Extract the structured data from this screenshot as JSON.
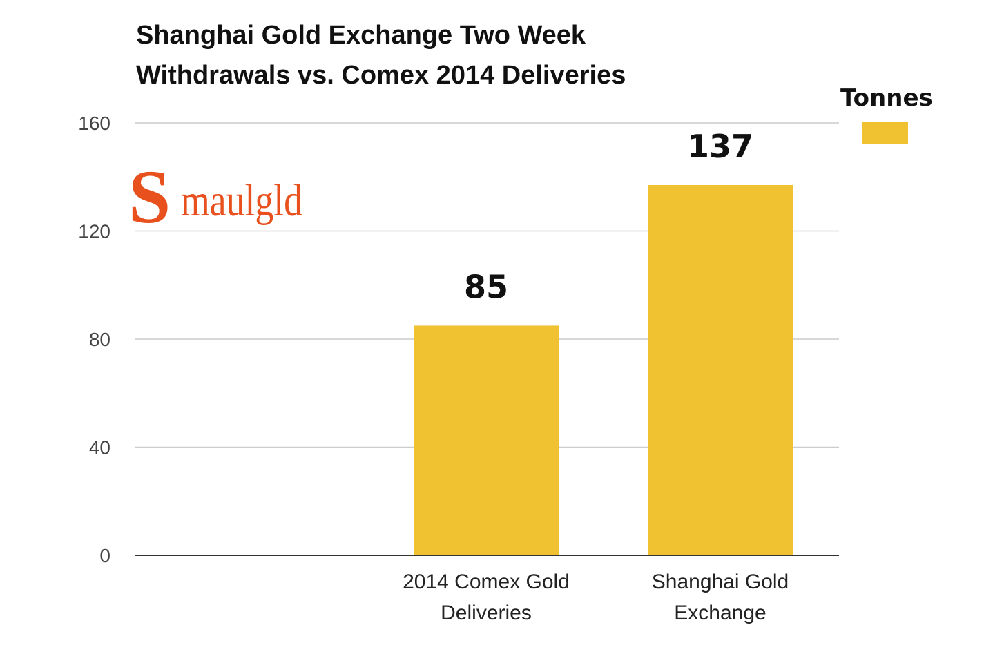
{
  "chart_data": {
    "type": "bar",
    "title_lines": [
      "Shanghai Gold Exchange Two Week",
      "Withdrawals vs. Comex 2014 Deliveries"
    ],
    "categories": [
      [
        "2014 Comex Gold",
        "Deliveries"
      ],
      [
        "Shanghai Gold",
        "Exchange"
      ]
    ],
    "series": [
      {
        "name": "Tonnes",
        "values": [
          85,
          137
        ],
        "color": "#f0c232"
      }
    ],
    "data_labels": [
      "85",
      "137"
    ],
    "y_ticks": [
      0,
      40,
      80,
      120,
      160
    ],
    "ylim": [
      0,
      160
    ],
    "grid": true,
    "legend_position": "top-right"
  },
  "logo": {
    "initial": "S",
    "text": "maulgld",
    "color": "#e8501e"
  }
}
